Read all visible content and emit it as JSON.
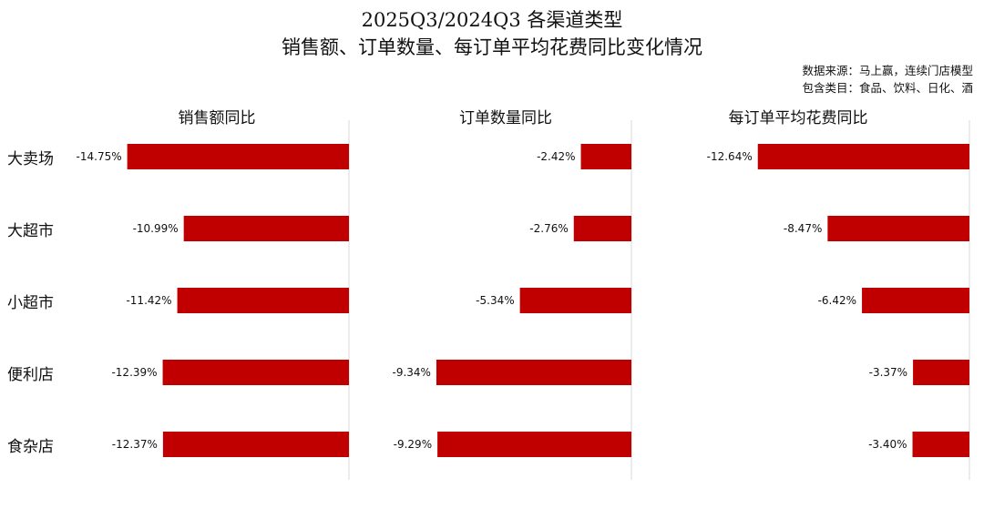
{
  "title_line1": "2025Q3/2024Q3 各渠道类型",
  "title_line2": "销售额、订单数量、每订单平均花费同比变化情况",
  "source_note": "数据来源：马上赢，连续门店模型",
  "category_note": "包含类目：食品、饮料、日化、酒",
  "colors": {
    "bar": "#C00000",
    "axis": "#D9D9D9"
  },
  "chart_data": [
    {
      "type": "bar",
      "orientation": "horizontal",
      "title": "销售额同比",
      "categories": [
        "大卖场",
        "大超市",
        "小超市",
        "便利店",
        "食杂店"
      ],
      "values": [
        -14.75,
        -10.99,
        -11.42,
        -12.39,
        -12.37
      ],
      "labels": [
        "-14.75%",
        "-10.99%",
        "-11.42%",
        "-12.39%",
        "-12.37%"
      ],
      "xlim": [
        -18,
        0
      ]
    },
    {
      "type": "bar",
      "orientation": "horizontal",
      "title": "订单数量同比",
      "categories": [
        "大卖场",
        "大超市",
        "小超市",
        "便利店",
        "食杂店"
      ],
      "values": [
        -2.42,
        -2.76,
        -5.34,
        -9.34,
        -9.29
      ],
      "labels": [
        "-2.42%",
        "-2.76%",
        "-5.34%",
        "-9.34%",
        "-9.29%"
      ],
      "xlim": [
        -12,
        0
      ]
    },
    {
      "type": "bar",
      "orientation": "horizontal",
      "title": "每订单平均花费同比",
      "categories": [
        "大卖场",
        "大超市",
        "小超市",
        "便利店",
        "食杂店"
      ],
      "values": [
        -12.64,
        -8.47,
        -6.42,
        -3.37,
        -3.4
      ],
      "labels": [
        "-12.64%",
        "-8.47%",
        "-6.42%",
        "-3.37%",
        "-3.40%"
      ],
      "xlim": [
        -16,
        0
      ]
    }
  ]
}
